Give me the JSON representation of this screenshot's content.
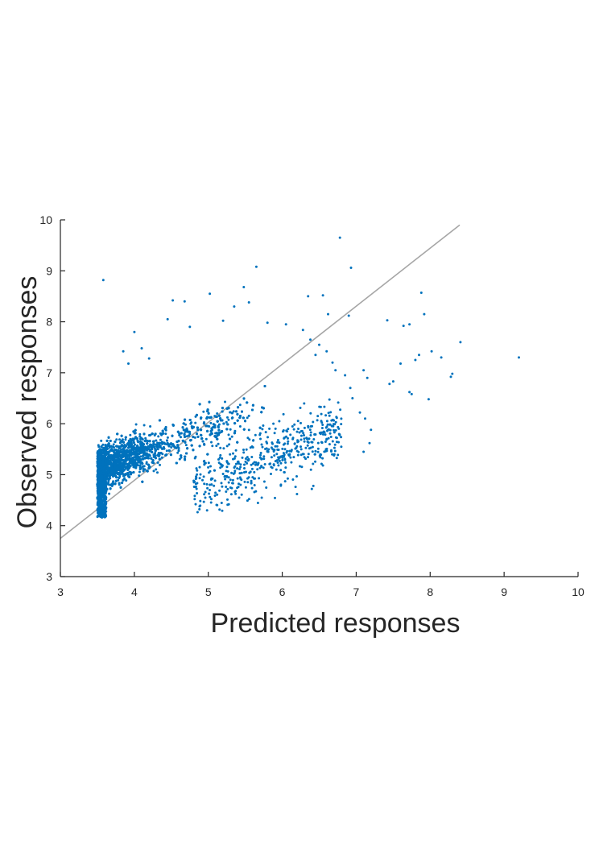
{
  "chart_data": {
    "type": "scatter",
    "title": "",
    "xlabel": "Predicted responses",
    "ylabel": "Observed responses",
    "xlim": [
      3,
      10
    ],
    "ylim": [
      3,
      10
    ],
    "xticks": [
      "3",
      "4",
      "5",
      "6",
      "7",
      "8",
      "9",
      "10"
    ],
    "yticks": [
      "3",
      "4",
      "5",
      "6",
      "7",
      "8",
      "9",
      "10"
    ],
    "grid": false,
    "legend": "none",
    "marker_color": "#0072BD",
    "reference_line": {
      "color": "#A6A6A6",
      "x": [
        3,
        8.4
      ],
      "y": [
        3.75,
        9.9
      ]
    },
    "cluster": {
      "x_min": 3.5,
      "x_center": 4.2,
      "y_intercept": 3.3,
      "slope": 0.52,
      "note": "dense point cloud"
    },
    "series": [
      {
        "values": [
          [
            3.58,
            8.82
          ],
          [
            6.78,
            9.65
          ],
          [
            6.93,
            9.06
          ],
          [
            5.65,
            9.08
          ],
          [
            5.48,
            8.68
          ],
          [
            5.02,
            8.55
          ],
          [
            4.52,
            8.42
          ],
          [
            4.68,
            8.4
          ],
          [
            5.55,
            8.38
          ],
          [
            5.35,
            8.3
          ],
          [
            7.88,
            8.57
          ],
          [
            7.92,
            8.15
          ],
          [
            6.55,
            8.52
          ],
          [
            6.35,
            8.5
          ],
          [
            6.62,
            8.15
          ],
          [
            6.9,
            8.12
          ],
          [
            7.42,
            8.03
          ],
          [
            7.72,
            7.95
          ],
          [
            7.64,
            7.92
          ],
          [
            8.41,
            7.6
          ],
          [
            8.02,
            7.42
          ],
          [
            8.15,
            7.3
          ],
          [
            9.2,
            7.3
          ],
          [
            8.3,
            6.98
          ],
          [
            8.28,
            6.92
          ],
          [
            7.98,
            6.48
          ],
          [
            7.75,
            6.58
          ],
          [
            7.72,
            6.62
          ],
          [
            7.5,
            6.83
          ],
          [
            7.45,
            6.78
          ],
          [
            7.85,
            7.35
          ],
          [
            7.8,
            7.25
          ],
          [
            7.6,
            7.18
          ],
          [
            7.1,
            7.05
          ],
          [
            7.15,
            6.9
          ],
          [
            7.05,
            6.22
          ],
          [
            7.12,
            6.1
          ],
          [
            7.2,
            5.88
          ],
          [
            7.1,
            5.45
          ],
          [
            7.18,
            5.62
          ],
          [
            6.55,
            5.18
          ],
          [
            6.42,
            4.78
          ],
          [
            6.4,
            4.72
          ],
          [
            6.2,
            4.62
          ],
          [
            6.18,
            4.76
          ],
          [
            3.85,
            7.42
          ],
          [
            4.0,
            7.8
          ],
          [
            4.1,
            7.48
          ],
          [
            4.2,
            7.28
          ],
          [
            3.92,
            7.18
          ],
          [
            4.45,
            8.05
          ],
          [
            4.75,
            7.9
          ],
          [
            5.2,
            8.02
          ],
          [
            5.8,
            7.98
          ],
          [
            6.05,
            7.95
          ],
          [
            6.28,
            7.84
          ],
          [
            6.38,
            7.65
          ],
          [
            6.5,
            7.55
          ],
          [
            6.45,
            7.35
          ],
          [
            6.6,
            7.42
          ],
          [
            6.68,
            7.2
          ],
          [
            6.72,
            7.05
          ],
          [
            6.85,
            6.95
          ],
          [
            6.92,
            6.7
          ],
          [
            6.95,
            6.5
          ],
          [
            6.48,
            6.15
          ],
          [
            6.35,
            5.95
          ],
          [
            6.52,
            5.8
          ],
          [
            6.6,
            5.7
          ],
          [
            6.25,
            5.55
          ],
          [
            6.3,
            5.65
          ],
          [
            6.1,
            5.4
          ],
          [
            5.95,
            5.3
          ],
          [
            5.85,
            5.15
          ],
          [
            5.6,
            4.95
          ]
        ]
      }
    ]
  }
}
